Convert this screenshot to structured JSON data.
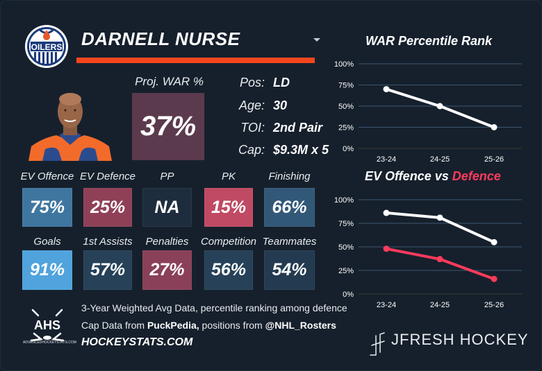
{
  "player": {
    "name": "DARNELL NURSE",
    "team_logo_text": "OILERS"
  },
  "proj_war": {
    "label": "Proj. WAR %",
    "value": "37%"
  },
  "info": [
    {
      "key": "Pos:",
      "value": "LD"
    },
    {
      "key": "Age:",
      "value": "30"
    },
    {
      "key": "TOI:",
      "value": "2nd Pair"
    },
    {
      "key": "Cap:",
      "value": "$9.3M x 5"
    }
  ],
  "stats": [
    {
      "label": "EV Offence",
      "value": "75%",
      "color": "#3f76a0"
    },
    {
      "label": "EV Defence",
      "value": "25%",
      "color": "#8f4057"
    },
    {
      "label": "PP",
      "value": "NA",
      "color": "#1e2d3d"
    },
    {
      "label": "PK",
      "value": "15%",
      "color": "#c04a63"
    },
    {
      "label": "Finishing",
      "value": "66%",
      "color": "#325878"
    },
    {
      "label": "Goals",
      "value": "91%",
      "color": "#50a3dd"
    },
    {
      "label": "1st Assists",
      "value": "57%",
      "color": "#264158"
    },
    {
      "label": "Penalties",
      "value": "27%",
      "color": "#8a4058"
    },
    {
      "label": "Competition",
      "value": "56%",
      "color": "#264158"
    },
    {
      "label": "Teammates",
      "value": "54%",
      "color": "#233a50"
    }
  ],
  "footer": {
    "line1": "3-Year Weighted Avg Data, percentile ranking among defence",
    "line2_prefix": "Cap Data from ",
    "line2_source1": "PuckPedia,",
    "line2_middle": " positions from ",
    "line2_source2": "@NHL_Rosters",
    "site": "HOCKEYSTATS.COM",
    "ahs_logo": "AHS",
    "ahs_small": "ADVANCEDHOCKEYSTATS.COM",
    "brand": "JFRESH HOCKEY"
  },
  "colors": {
    "accent_orange": "#f4461f",
    "defence_red": "#ff3b5c",
    "offence_white": "#ffffff"
  },
  "chart_data": [
    {
      "type": "line",
      "title": "WAR Percentile Rank",
      "categories": [
        "23-24",
        "24-25",
        "25-26"
      ],
      "series": [
        {
          "name": "WAR",
          "values": [
            70,
            50,
            25
          ],
          "color": "#ffffff"
        }
      ],
      "yticks": [
        "0%",
        "25%",
        "50%",
        "75%",
        "100%"
      ],
      "ylim": [
        0,
        100
      ],
      "grid": true
    },
    {
      "type": "line",
      "title_part1": "EV Offence vs ",
      "title_part2": "Defence",
      "categories": [
        "23-24",
        "24-25",
        "25-26"
      ],
      "series": [
        {
          "name": "EV Offence",
          "values": [
            86,
            81,
            55
          ],
          "color": "#ffffff"
        },
        {
          "name": "EV Defence",
          "values": [
            48,
            37,
            16
          ],
          "color": "#ff3b5c"
        }
      ],
      "yticks": [
        "0%",
        "25%",
        "50%",
        "75%",
        "100%"
      ],
      "ylim": [
        0,
        100
      ],
      "grid": true
    }
  ]
}
